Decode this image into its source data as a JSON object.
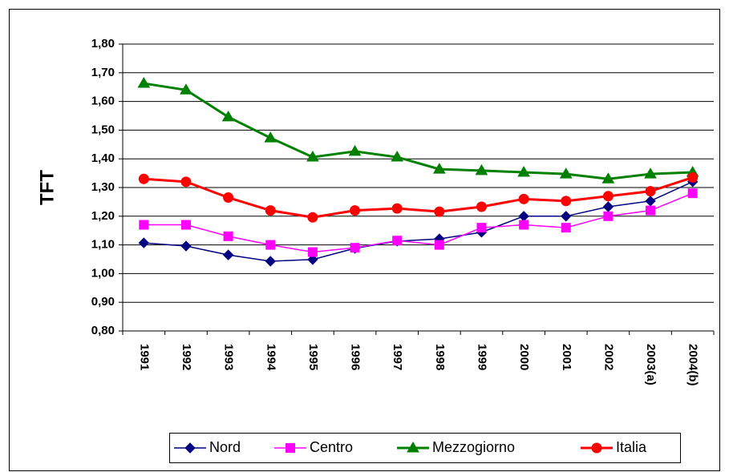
{
  "chart_data": {
    "type": "line",
    "y_label": "TFT",
    "categories": [
      "1991",
      "1992",
      "1993",
      "1994",
      "1995",
      "1996",
      "1997",
      "1998",
      "1999",
      "2000",
      "2001",
      "2002",
      "2003(a)",
      "2004(b)"
    ],
    "series": [
      {
        "name": "Nord",
        "color": "#000080",
        "marker": "diamond",
        "values": [
          1.107,
          1.096,
          1.065,
          1.043,
          1.049,
          1.088,
          1.113,
          1.121,
          1.144,
          1.2,
          1.2,
          1.233,
          1.253,
          1.32
        ]
      },
      {
        "name": "Centro",
        "color": "#ff00ff",
        "marker": "square",
        "values": [
          1.17,
          1.17,
          1.13,
          1.1,
          1.075,
          1.09,
          1.115,
          1.1,
          1.16,
          1.17,
          1.16,
          1.2,
          1.22,
          1.28
        ]
      },
      {
        "name": "Mezzogiorno",
        "color": "#008000",
        "marker": "triangle",
        "values": [
          1.663,
          1.64,
          1.546,
          1.473,
          1.406,
          1.426,
          1.406,
          1.364,
          1.359,
          1.353,
          1.347,
          1.33,
          1.347,
          1.353
        ]
      },
      {
        "name": "Italia",
        "color": "#ff0000",
        "marker": "circle",
        "values": [
          1.33,
          1.32,
          1.265,
          1.22,
          1.196,
          1.22,
          1.227,
          1.216,
          1.233,
          1.26,
          1.253,
          1.27,
          1.287,
          1.335
        ]
      }
    ],
    "ylim": [
      0.8,
      1.8
    ],
    "yticks": [
      {
        "value": 0.8,
        "label": "0,80"
      },
      {
        "value": 0.9,
        "label": "0,90"
      },
      {
        "value": 1.0,
        "label": "1,00"
      },
      {
        "value": 1.1,
        "label": "1,10"
      },
      {
        "value": 1.2,
        "label": "1,20"
      },
      {
        "value": 1.3,
        "label": "1,30"
      },
      {
        "value": 1.4,
        "label": "1,40"
      },
      {
        "value": 1.5,
        "label": "1,50"
      },
      {
        "value": 1.6,
        "label": "1,60"
      },
      {
        "value": 1.7,
        "label": "1,70"
      },
      {
        "value": 1.8,
        "label": "1,80"
      }
    ],
    "grid": true,
    "legend": "bottom"
  }
}
